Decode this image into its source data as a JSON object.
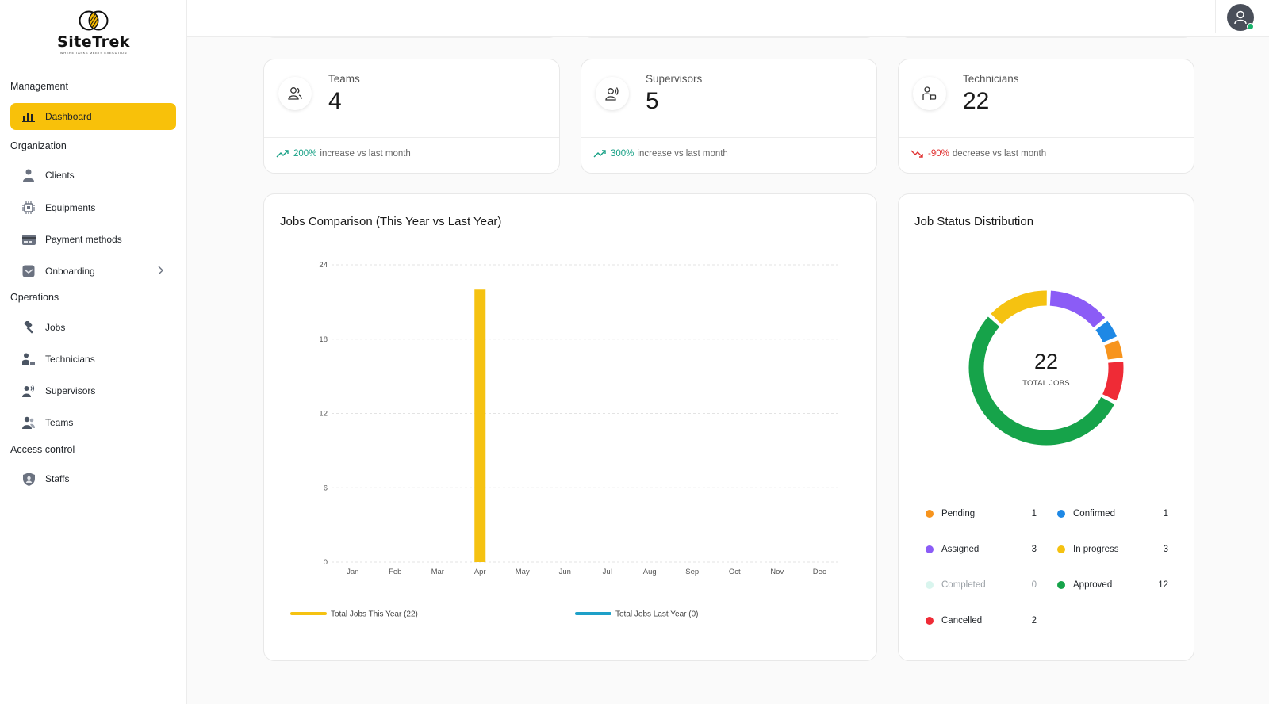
{
  "brand": {
    "name": "SiteTrek",
    "tagline": "WHERE TASKS MEETS EXECUTION"
  },
  "sidebar": {
    "groups": [
      {
        "title": "Management"
      },
      {
        "title": "Organization"
      },
      {
        "title": "Operations"
      },
      {
        "title": "Access control"
      }
    ],
    "items": [
      {
        "label": "Dashboard",
        "icon": "bar-chart-icon",
        "active": true
      },
      {
        "label": "Clients",
        "icon": "person-icon"
      },
      {
        "label": "Equipments",
        "icon": "chip-icon"
      },
      {
        "label": "Payment methods",
        "icon": "card-icon"
      },
      {
        "label": "Onboarding",
        "icon": "inbox-icon"
      },
      {
        "label": "Jobs",
        "icon": "hammer-icon"
      },
      {
        "label": "Technicians",
        "icon": "technician-icon"
      },
      {
        "label": "Supervisors",
        "icon": "supervisor-icon"
      },
      {
        "label": "Teams",
        "icon": "team-icon"
      },
      {
        "label": "Staffs",
        "icon": "shield-icon"
      }
    ]
  },
  "stats": [
    {
      "label": "Teams",
      "value": "4",
      "pct": "200%",
      "trend_text": "increase vs last month",
      "direction": "up"
    },
    {
      "label": "Supervisors",
      "value": "5",
      "pct": "300%",
      "trend_text": "increase vs last month",
      "direction": "up"
    },
    {
      "label": "Technicians",
      "value": "22",
      "pct": "-90%",
      "trend_text": "decrease vs last month",
      "direction": "down"
    }
  ],
  "jobs_comparison": {
    "title": "Jobs Comparison (This Year vs Last Year)"
  },
  "job_status": {
    "title": "Job Status Distribution",
    "center_value": "22",
    "center_label": "TOTAL JOBS",
    "items": [
      {
        "label": "Pending",
        "count": "1",
        "color": "#f7941d"
      },
      {
        "label": "Confirmed",
        "count": "1",
        "color": "#1e88e5"
      },
      {
        "label": "Assigned",
        "count": "3",
        "color": "#8b5cf6"
      },
      {
        "label": "In progress",
        "count": "3",
        "color": "#f5c211"
      },
      {
        "label": "Completed",
        "count": "0",
        "color": "#d9f5ee"
      },
      {
        "label": "Approved",
        "count": "12",
        "color": "#16a34a"
      },
      {
        "label": "Cancelled",
        "count": "2",
        "color": "#ef2b36"
      }
    ]
  },
  "chart_data": [
    {
      "type": "bar",
      "title": "Jobs Comparison (This Year vs Last Year)",
      "categories": [
        "Jan",
        "Feb",
        "Mar",
        "Apr",
        "May",
        "Jun",
        "Jul",
        "Aug",
        "Sep",
        "Oct",
        "Nov",
        "Dec"
      ],
      "series": [
        {
          "name": "Total Jobs This Year (22)",
          "color": "#f5c211",
          "values": [
            0,
            0,
            0,
            22,
            0,
            0,
            0,
            0,
            0,
            0,
            0,
            0
          ]
        },
        {
          "name": "Total Jobs Last Year (0)",
          "color": "#1ea0c8",
          "values": [
            0,
            0,
            0,
            0,
            0,
            0,
            0,
            0,
            0,
            0,
            0,
            0
          ]
        }
      ],
      "yticks": [
        0,
        6,
        12,
        18,
        24
      ],
      "ylim": [
        0,
        24
      ],
      "grid": true,
      "legend": "bottom"
    },
    {
      "type": "pie",
      "title": "Job Status Distribution",
      "categories": [
        "Pending",
        "Confirmed",
        "Assigned",
        "In progress",
        "Completed",
        "Approved",
        "Cancelled"
      ],
      "values": [
        1,
        1,
        3,
        3,
        0,
        12,
        2
      ],
      "colors": [
        "#f7941d",
        "#1e88e5",
        "#8b5cf6",
        "#f5c211",
        "#d9f5ee",
        "#16a34a",
        "#ef2b36"
      ],
      "slice_order": [
        "Assigned",
        "Confirmed",
        "Pending",
        "Cancelled",
        "Approved",
        "In progress"
      ],
      "donut": true
    }
  ]
}
